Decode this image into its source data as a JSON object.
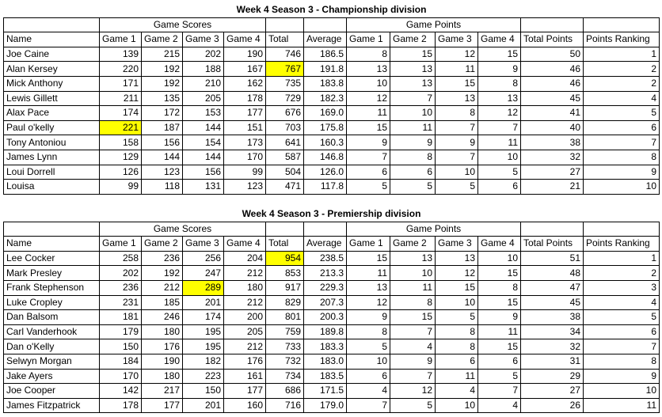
{
  "highlight_color": "#ffff00",
  "tables": [
    {
      "title": "Week 4 Season 3 - Championship division",
      "groups": [
        "Game Scores",
        "Game Points"
      ],
      "columns": [
        "Name",
        "Game 1",
        "Game 2",
        "Game 3",
        "Game 4",
        "Total",
        "Average",
        "Game 1",
        "Game 2",
        "Game 3",
        "Game 4",
        "Total Points",
        "Points Ranking"
      ],
      "rows": [
        [
          "Joe Caine",
          "139",
          "215",
          "202",
          "190",
          "746",
          "186.5",
          "8",
          "15",
          "12",
          "15",
          "50",
          "1"
        ],
        [
          "Alan Kersey",
          "220",
          "192",
          "188",
          "167",
          "767",
          "191.8",
          "13",
          "13",
          "11",
          "9",
          "46",
          "2"
        ],
        [
          "Mick Anthony",
          "171",
          "192",
          "210",
          "162",
          "735",
          "183.8",
          "10",
          "13",
          "15",
          "8",
          "46",
          "2"
        ],
        [
          "Lewis Gillett",
          "211",
          "135",
          "205",
          "178",
          "729",
          "182.3",
          "12",
          "7",
          "13",
          "13",
          "45",
          "4"
        ],
        [
          "Alax Pace",
          "174",
          "172",
          "153",
          "177",
          "676",
          "169.0",
          "11",
          "10",
          "8",
          "12",
          "41",
          "5"
        ],
        [
          "Paul o'kelly",
          "221",
          "187",
          "144",
          "151",
          "703",
          "175.8",
          "15",
          "11",
          "7",
          "7",
          "40",
          "6"
        ],
        [
          "Tony Antoniou",
          "158",
          "156",
          "154",
          "173",
          "641",
          "160.3",
          "9",
          "9",
          "9",
          "11",
          "38",
          "7"
        ],
        [
          "James Lynn",
          "129",
          "144",
          "144",
          "170",
          "587",
          "146.8",
          "7",
          "8",
          "7",
          "10",
          "32",
          "8"
        ],
        [
          "Loui Dorrell",
          "126",
          "123",
          "156",
          "99",
          "504",
          "126.0",
          "6",
          "6",
          "10",
          "5",
          "27",
          "9"
        ],
        [
          "Louisa",
          "99",
          "118",
          "131",
          "123",
          "471",
          "117.8",
          "5",
          "5",
          "5",
          "6",
          "21",
          "10"
        ]
      ],
      "highlighted": [
        [
          1,
          5
        ],
        [
          5,
          1
        ]
      ]
    },
    {
      "title": "Week 4 Season 3 - Premiership division",
      "groups": [
        "Game Scores",
        "Game Points"
      ],
      "columns": [
        "Name",
        "Game 1",
        "Game 2",
        "Game 3",
        "Game 4",
        "Total",
        "Average",
        "Game 1",
        "Game 2",
        "Game 3",
        "Game 4",
        "Total Points",
        "Points Ranking"
      ],
      "rows": [
        [
          "Lee Cocker",
          "258",
          "236",
          "256",
          "204",
          "954",
          "238.5",
          "15",
          "13",
          "13",
          "10",
          "51",
          "1"
        ],
        [
          "Mark Presley",
          "202",
          "192",
          "247",
          "212",
          "853",
          "213.3",
          "11",
          "10",
          "12",
          "15",
          "48",
          "2"
        ],
        [
          "Frank Stephenson",
          "236",
          "212",
          "289",
          "180",
          "917",
          "229.3",
          "13",
          "11",
          "15",
          "8",
          "47",
          "3"
        ],
        [
          "Luke Cropley",
          "231",
          "185",
          "201",
          "212",
          "829",
          "207.3",
          "12",
          "8",
          "10",
          "15",
          "45",
          "4"
        ],
        [
          "Dan Balsom",
          "181",
          "246",
          "174",
          "200",
          "801",
          "200.3",
          "9",
          "15",
          "5",
          "9",
          "38",
          "5"
        ],
        [
          "Carl Vanderhook",
          "179",
          "180",
          "195",
          "205",
          "759",
          "189.8",
          "8",
          "7",
          "8",
          "11",
          "34",
          "6"
        ],
        [
          "Dan o'Kelly",
          "150",
          "176",
          "195",
          "212",
          "733",
          "183.3",
          "5",
          "4",
          "8",
          "15",
          "32",
          "7"
        ],
        [
          "Selwyn Morgan",
          "184",
          "190",
          "182",
          "176",
          "732",
          "183.0",
          "10",
          "9",
          "6",
          "6",
          "31",
          "8"
        ],
        [
          "Jake Ayers",
          "170",
          "180",
          "223",
          "161",
          "734",
          "183.5",
          "6",
          "7",
          "11",
          "5",
          "29",
          "9"
        ],
        [
          "Joe Cooper",
          "142",
          "217",
          "150",
          "177",
          "686",
          "171.5",
          "4",
          "12",
          "4",
          "7",
          "27",
          "10"
        ],
        [
          "James Fitzpatrick",
          "178",
          "177",
          "201",
          "160",
          "716",
          "179.0",
          "7",
          "5",
          "10",
          "4",
          "26",
          "11"
        ]
      ],
      "highlighted": [
        [
          0,
          5
        ],
        [
          2,
          3
        ]
      ]
    }
  ]
}
